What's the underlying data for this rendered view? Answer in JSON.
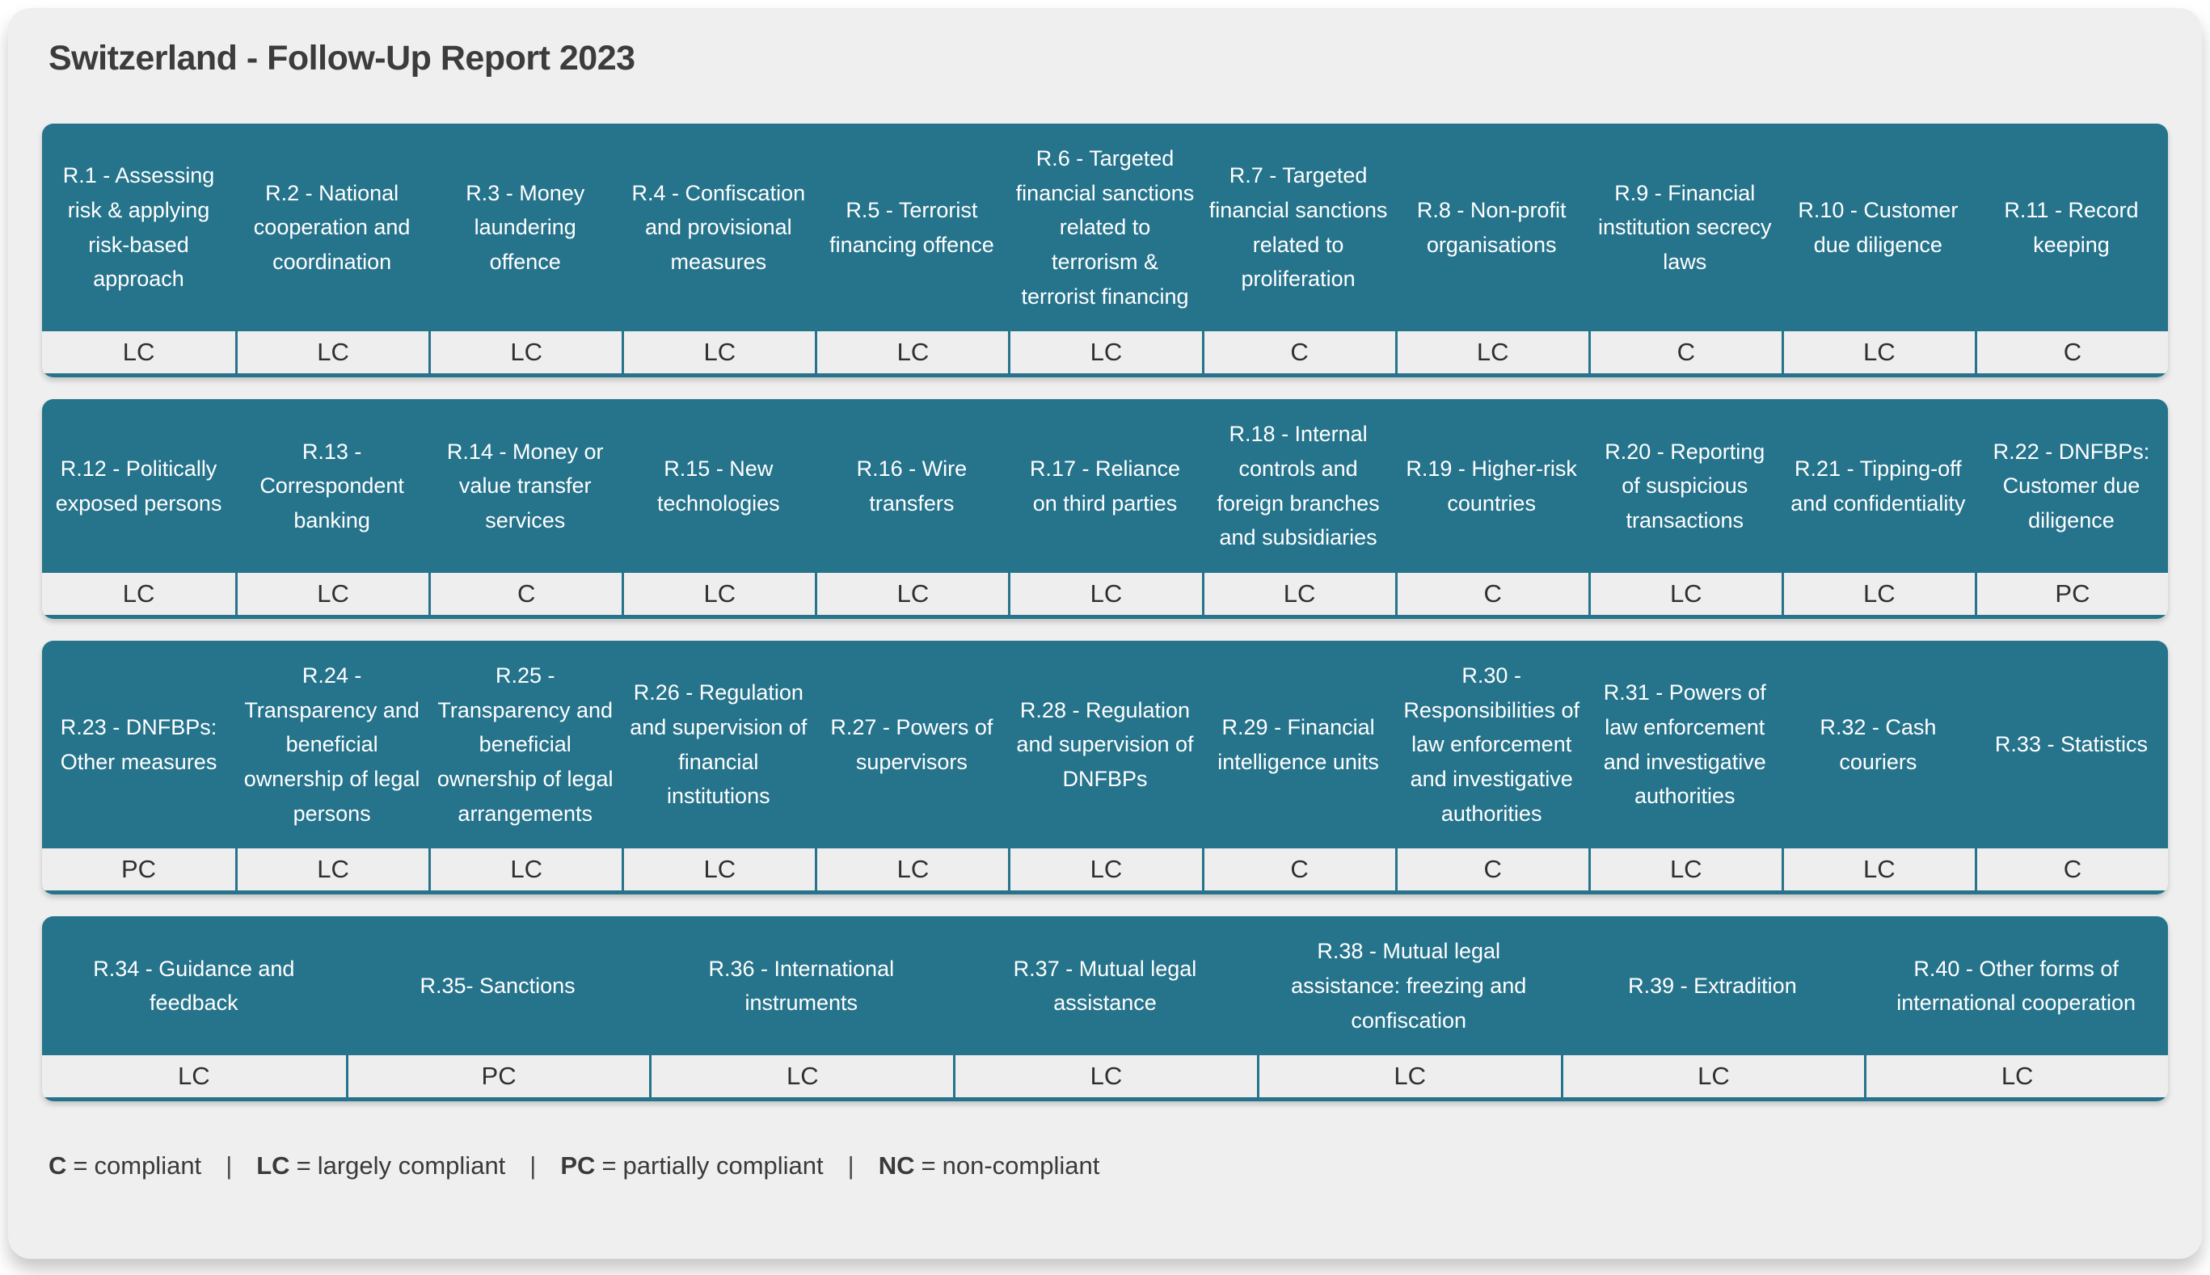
{
  "title": "Switzerland - Follow-Up Report 2023",
  "colors": {
    "accent_teal": "#26748c",
    "card_background": "#efefef",
    "cell_background": "#eeeeee",
    "header_text": "#ffffff",
    "body_text": "#3c3c3c"
  },
  "groups": [
    {
      "items": [
        {
          "label": "R.1 - Assessing risk & applying risk-based approach",
          "rating": "LC"
        },
        {
          "label": "R.2 - National cooperation and coordination",
          "rating": "LC"
        },
        {
          "label": "R.3 - Money laundering offence",
          "rating": "LC"
        },
        {
          "label": "R.4 - Confiscation and provisional measures",
          "rating": "LC"
        },
        {
          "label": "R.5 - Terrorist financing offence",
          "rating": "LC"
        },
        {
          "label": "R.6 - Targeted financial sanctions related to terrorism & terrorist financing",
          "rating": "LC"
        },
        {
          "label": "R.7 - Targeted financial sanctions related to proliferation",
          "rating": "C"
        },
        {
          "label": "R.8 - Non-profit organisations",
          "rating": "LC"
        },
        {
          "label": "R.9 - Financial institution secrecy laws",
          "rating": "C"
        },
        {
          "label": "R.10 - Customer due diligence",
          "rating": "LC"
        },
        {
          "label": "R.11 - Record keeping",
          "rating": "C"
        }
      ]
    },
    {
      "items": [
        {
          "label": "R.12 - Politically exposed persons",
          "rating": "LC"
        },
        {
          "label": "R.13 - Correspondent banking",
          "rating": "LC"
        },
        {
          "label": "R.14 - Money or value transfer services",
          "rating": "C"
        },
        {
          "label": "R.15 - New technologies",
          "rating": "LC"
        },
        {
          "label": "R.16 - Wire transfers",
          "rating": "LC"
        },
        {
          "label": "R.17 - Reliance on third parties",
          "rating": "LC"
        },
        {
          "label": "R.18 - Internal controls and foreign branches and subsidiaries",
          "rating": "LC"
        },
        {
          "label": "R.19 - Higher-risk countries",
          "rating": "C"
        },
        {
          "label": "R.20 - Reporting of suspicious transactions",
          "rating": "LC"
        },
        {
          "label": "R.21 - Tipping-off and confidentiality",
          "rating": "LC"
        },
        {
          "label": "R.22 - DNFBPs: Customer due diligence",
          "rating": "PC"
        }
      ]
    },
    {
      "items": [
        {
          "label": "R.23 - DNFBPs: Other measures",
          "rating": "PC"
        },
        {
          "label": "R.24 - Transparency and beneficial ownership of legal persons",
          "rating": "LC"
        },
        {
          "label": "R.25 - Transparency and beneficial ownership of legal arrangements",
          "rating": "LC"
        },
        {
          "label": "R.26 - Regulation and supervision of financial institutions",
          "rating": "LC"
        },
        {
          "label": "R.27 - Powers of supervisors",
          "rating": "LC"
        },
        {
          "label": "R.28 - Regulation and supervision of DNFBPs",
          "rating": "LC"
        },
        {
          "label": "R.29 - Financial intelligence units",
          "rating": "C"
        },
        {
          "label": "R.30 - Responsibilities of law enforcement and investigative authorities",
          "rating": "C"
        },
        {
          "label": "R.31 - Powers of law enforcement and investigative authorities",
          "rating": "LC"
        },
        {
          "label": "R.32 - Cash couriers",
          "rating": "LC"
        },
        {
          "label": "R.33 - Statistics",
          "rating": "C"
        }
      ]
    },
    {
      "items": [
        {
          "label": "R.34 - Guidance and feedback",
          "rating": "LC"
        },
        {
          "label": "R.35- Sanctions",
          "rating": "PC"
        },
        {
          "label": "R.36 - International instruments",
          "rating": "LC"
        },
        {
          "label": "R.37 - Mutual legal assistance",
          "rating": "LC"
        },
        {
          "label": "R.38 - Mutual legal assistance: freezing and confiscation",
          "rating": "LC"
        },
        {
          "label": "R.39 - Extradition",
          "rating": "LC"
        },
        {
          "label": "R.40 - Other forms of international cooperation",
          "rating": "LC"
        }
      ]
    }
  ],
  "legend": [
    {
      "abbr": "C",
      "eq": "=",
      "label": "compliant"
    },
    {
      "abbr": "LC",
      "eq": "=",
      "label": "largely compliant"
    },
    {
      "abbr": "PC",
      "eq": "=",
      "label": "partially compliant"
    },
    {
      "abbr": "NC",
      "eq": "=",
      "label": "non-compliant"
    }
  ],
  "legend_separator": "|"
}
